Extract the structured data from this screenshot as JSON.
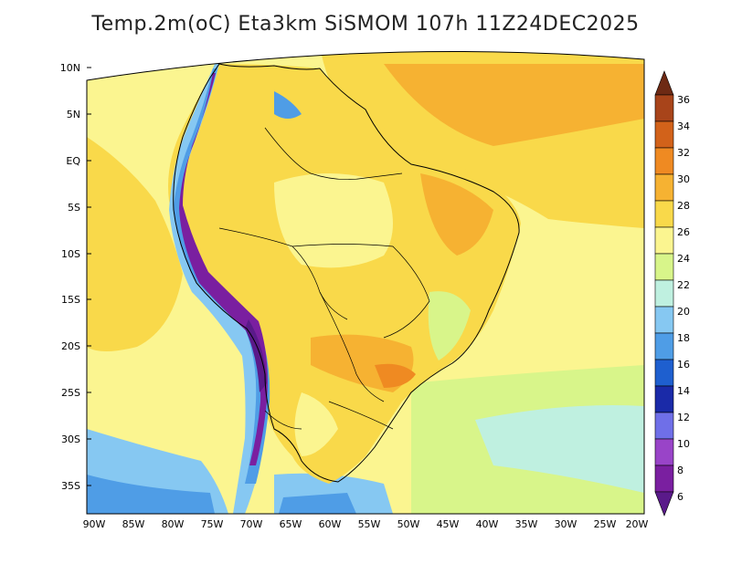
{
  "title": "Temp.2m(oC) Eta3km SiSMOM 107h 11Z24DEC2025",
  "map": {
    "variable": "Temperature at 2 m",
    "units": "oC",
    "lat_labels": [
      "10N",
      "5N",
      "EQ",
      "5S",
      "10S",
      "15S",
      "20S",
      "25S",
      "30S",
      "35S"
    ],
    "lon_labels": [
      "90W",
      "85W",
      "80W",
      "75W",
      "70W",
      "65W",
      "60W",
      "55W",
      "50W",
      "45W",
      "40W",
      "35W",
      "30W",
      "25W",
      "20W"
    ]
  },
  "colorbar": {
    "labels": [
      "6",
      "8",
      "10",
      "12",
      "14",
      "16",
      "18",
      "20",
      "22",
      "24",
      "26",
      "28",
      "30",
      "32",
      "34",
      "36"
    ],
    "colors": {
      "lt6": "#5a1a8a",
      "6_8": "#7a1fa0",
      "8_10": "#9944c8",
      "10_12": "#6f6fe8",
      "12_14": "#1a2aa8",
      "14_16": "#1e5fcf",
      "16_18": "#4f9de6",
      "18_20": "#86c8f2",
      "20_22": "#bff0e0",
      "22_24": "#d8f58a",
      "24_26": "#fbf590",
      "26_28": "#f9d94a",
      "28_30": "#f6b232",
      "30_32": "#ef8a22",
      "32_34": "#d2621a",
      "34_36": "#a8441a",
      "gt36": "#6e2a14"
    }
  }
}
